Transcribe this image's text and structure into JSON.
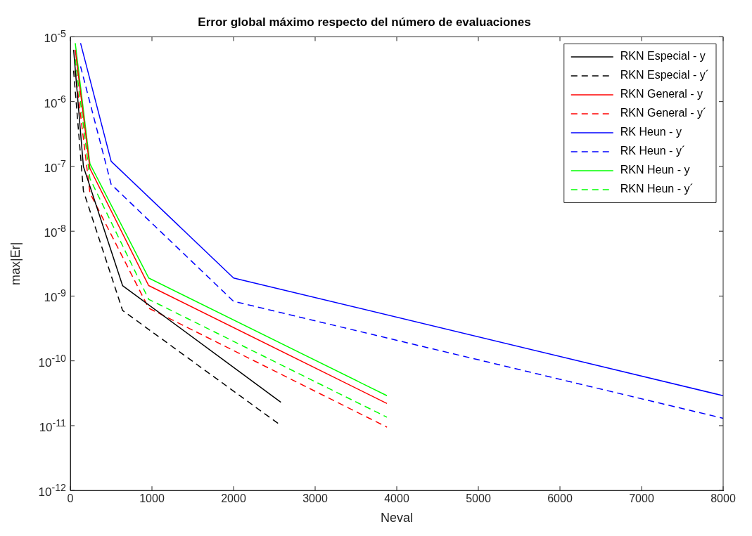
{
  "chart_data": {
    "type": "line",
    "title": "Error global máximo respecto del número de evaluaciones",
    "xlabel": "Neval",
    "ylabel": "max|Er|",
    "log": "y",
    "grid": false,
    "legend": "top right",
    "marker": "none",
    "xlim": [
      0,
      8000
    ],
    "xticks": [
      0,
      1000,
      2000,
      3000,
      4000,
      5000,
      6000,
      7000,
      8000
    ],
    "ylim": [
      1e-12,
      1e-05
    ],
    "yticks": [
      {
        "value": 1e-12,
        "label": "10$^{-12}$"
      },
      {
        "value": 1e-11,
        "label": "10$^{-11}$"
      },
      {
        "value": 1e-10,
        "label": "10$^{-10}$"
      },
      {
        "value": 1e-09,
        "label": "10$^{-9}$"
      },
      {
        "value": 1e-08,
        "label": "10$^{-8}$"
      },
      {
        "value": 1e-07,
        "label": "10$^{-7}$"
      },
      {
        "value": 1e-06,
        "label": "10$^{-6}$"
      },
      {
        "value": 1e-05,
        "label": "10$^{-5}$"
      }
    ],
    "series": [
      {
        "name": "RKN Especial - y",
        "color": "#000000",
        "line_style": "solid",
        "x": [
          40,
          160,
          640,
          2580
        ],
        "values": [
          6.3e-06,
          1e-07,
          1.45e-09,
          2.3e-11
        ]
      },
      {
        "name": "RKN Especial - y´",
        "color": "#000000",
        "line_style": "dashed",
        "x": [
          40,
          160,
          640,
          2560
        ],
        "values": [
          3e-06,
          4.2e-08,
          6e-10,
          1.05e-11
        ]
      },
      {
        "name": "RKN General - y",
        "color": "#ff0000",
        "line_style": "solid",
        "x": [
          60,
          240,
          960,
          3880
        ],
        "values": [
          6.3e-06,
          9.3e-08,
          1.45e-09,
          2.2e-11
        ]
      },
      {
        "name": "RKN General - y´",
        "color": "#ff0000",
        "line_style": "dashed",
        "x": [
          60,
          240,
          960,
          3880
        ],
        "values": [
          3e-06,
          3.9e-08,
          6.5e-10,
          9.5e-12
        ]
      },
      {
        "name": "RK Heun - y",
        "color": "#0000ff",
        "line_style": "solid",
        "x": [
          125,
          500,
          2000,
          8000
        ],
        "values": [
          8e-06,
          1.2e-07,
          1.9e-09,
          2.9e-11
        ]
      },
      {
        "name": "RK Heun - y´",
        "color": "#0000ff",
        "line_style": "dashed",
        "x": [
          125,
          500,
          2000,
          8000
        ],
        "values": [
          3.5e-06,
          5.3e-08,
          8.3e-10,
          1.3e-11
        ]
      },
      {
        "name": "RKN Heun - y",
        "color": "#00ff00",
        "line_style": "solid",
        "x": [
          60,
          240,
          960,
          3880
        ],
        "values": [
          8e-06,
          1.1e-07,
          1.9e-09,
          2.9e-11
        ]
      },
      {
        "name": "RKN Heun - y´",
        "color": "#00ff00",
        "line_style": "dashed",
        "x": [
          60,
          240,
          960,
          3880
        ],
        "values": [
          4.5e-06,
          6.5e-08,
          8.9e-10,
          1.35e-11
        ]
      }
    ]
  }
}
